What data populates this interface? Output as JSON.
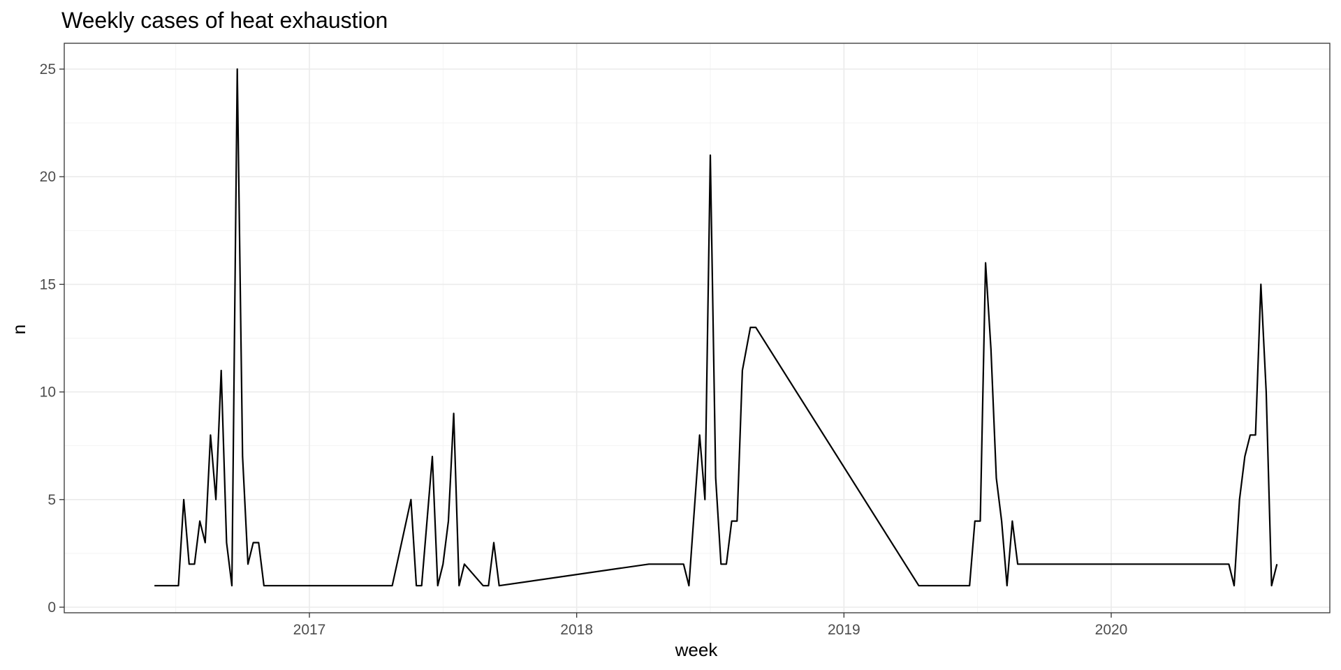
{
  "chart_data": {
    "type": "line",
    "title": "Weekly cases of heat exhaustion",
    "xlabel": "week",
    "ylabel": "n",
    "x_is_date": true,
    "xlim": [
      2016.2,
      2020.82
    ],
    "ylim": [
      0,
      25
    ],
    "x_ticks": [
      2017,
      2018,
      2019,
      2020
    ],
    "x_tick_labels": [
      "2017",
      "2018",
      "2019",
      "2020"
    ],
    "y_ticks": [
      0,
      5,
      10,
      15,
      20,
      25
    ],
    "y_tick_labels": [
      "0",
      "5",
      "10",
      "15",
      "20",
      "25"
    ],
    "grid": true,
    "legend": "none",
    "line_color": "#000000",
    "series": [
      {
        "x": [
          2016.42,
          2016.47,
          2016.51,
          2016.53,
          2016.55,
          2016.57,
          2016.59,
          2016.61,
          2016.63,
          2016.65,
          2016.67,
          2016.69,
          2016.71,
          2016.73,
          2016.75,
          2016.77,
          2016.79,
          2016.81,
          2016.83,
          2016.85,
          2016.87,
          2016.89,
          2017.31,
          2017.38,
          2017.4,
          2017.42,
          2017.46,
          2017.48,
          2017.5,
          2017.52,
          2017.54,
          2017.56,
          2017.58,
          2017.65,
          2017.67,
          2017.69,
          2017.71,
          2018.27,
          2018.4,
          2018.42,
          2018.46,
          2018.48,
          2018.5,
          2018.52,
          2018.54,
          2018.56,
          2018.58,
          2018.6,
          2018.62,
          2018.65,
          2018.67,
          2019.28,
          2019.47,
          2019.49,
          2019.51,
          2019.53,
          2019.55,
          2019.57,
          2019.59,
          2019.61,
          2019.63,
          2019.65,
          2020.44,
          2020.46,
          2020.48,
          2020.5,
          2020.52,
          2020.54,
          2020.56,
          2020.58,
          2020.6,
          2020.62
        ],
        "y": [
          1,
          1,
          1,
          5,
          2,
          2,
          4,
          3,
          8,
          5,
          11,
          3,
          1,
          25,
          7,
          2,
          3,
          3,
          1,
          1,
          1,
          1,
          1,
          5,
          1,
          1,
          7,
          1,
          2,
          4,
          9,
          1,
          2,
          1,
          1,
          3,
          1,
          2,
          2,
          1,
          8,
          5,
          21,
          6,
          2,
          2,
          4,
          4,
          11,
          13,
          13,
          1,
          1,
          4,
          4,
          16,
          12,
          6,
          4,
          1,
          4,
          2,
          2,
          1,
          5,
          7,
          8,
          8,
          15,
          10,
          1,
          2
        ]
      }
    ]
  }
}
